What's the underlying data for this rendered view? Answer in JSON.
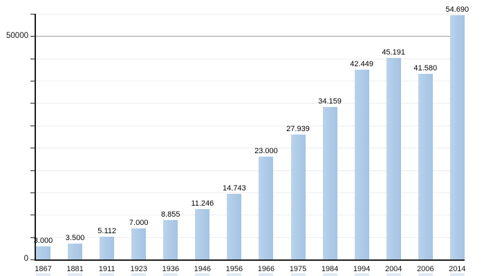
{
  "chart_data": {
    "type": "bar",
    "title": "",
    "xlabel": "",
    "ylabel": "",
    "categories": [
      "1867",
      "1881",
      "1911",
      "1923",
      "1936",
      "1946",
      "1956",
      "1966",
      "1975",
      "1984",
      "1994",
      "2004",
      "2006",
      "2014"
    ],
    "values": [
      3000,
      3500,
      5112,
      7000,
      8855,
      11246,
      14743,
      23000,
      27939,
      34159,
      42449,
      45191,
      41580,
      54690
    ],
    "value_labels": [
      "3.000",
      "3.500",
      "5.112",
      "7.000",
      "8.855",
      "11.246",
      "14.743",
      "23.000",
      "27.939",
      "34.159",
      "42.449",
      "45.191",
      "41.580",
      "54.690"
    ],
    "ylim": [
      0,
      55000
    ],
    "ytick_interval": 5000,
    "major_gridline_value": 50000,
    "grid": true,
    "legend_position": "none",
    "yaxis_labels": {
      "zero": "0",
      "fifty_thousand": "50000"
    },
    "colors": {
      "bar": "#aecbe8",
      "grid_minor": "#ededed",
      "grid_major": "#9a9a9a",
      "axis": "#1a1a1a",
      "label_text": "#000000",
      "background": "#ffffff"
    }
  }
}
